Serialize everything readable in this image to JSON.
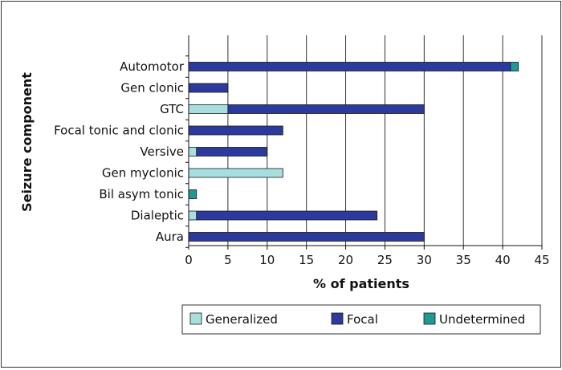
{
  "chart_data": {
    "type": "bar",
    "orientation": "horizontal",
    "stacked": true,
    "xlabel": "% of patients",
    "ylabel": "Seizure component",
    "xlim": [
      0,
      45
    ],
    "xticks": [
      0,
      5,
      10,
      15,
      20,
      25,
      30,
      35,
      40,
      45
    ],
    "grid": "vertical",
    "legend_position": "bottom",
    "categories": [
      "Automotor",
      "Gen clonic",
      "GTC",
      "Focal tonic and clonic",
      "Versive",
      "Gen myclonic",
      "Bil asym tonic",
      "Dialeptic",
      "Aura"
    ],
    "series": [
      {
        "name": "Generalized",
        "color": "#a8dede",
        "values": [
          0,
          0,
          5,
          0,
          1,
          12,
          0,
          1,
          0
        ]
      },
      {
        "name": "Focal",
        "color": "#2b3a9c",
        "values": [
          41,
          5,
          25,
          12,
          9,
          0,
          0,
          23,
          30
        ]
      },
      {
        "name": "Undetermined",
        "color": "#1d9a94",
        "values": [
          1,
          0,
          0,
          0,
          0,
          0,
          1,
          0,
          0
        ]
      }
    ]
  }
}
